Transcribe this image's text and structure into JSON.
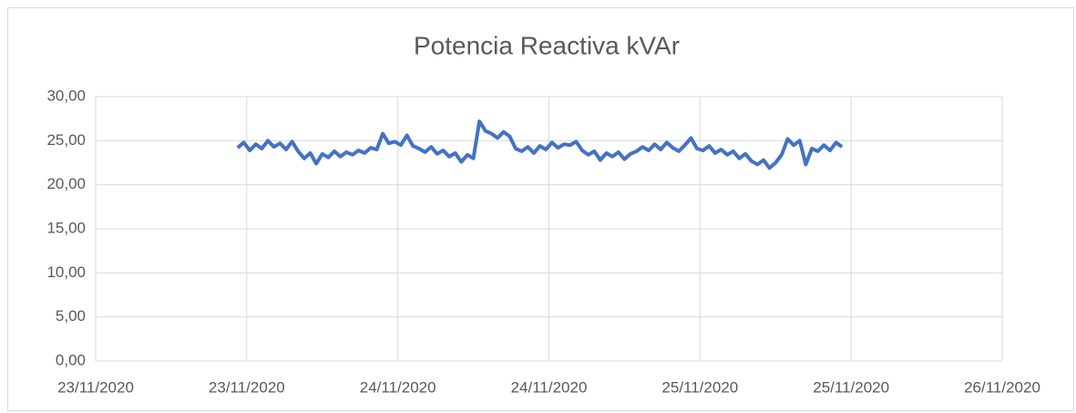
{
  "chart_data": {
    "type": "line",
    "title": "Potencia Reactiva kVAr",
    "x": [
      44158.47,
      44158.49,
      44158.51,
      44158.53,
      44158.55,
      44158.57,
      44158.59,
      44158.61,
      44158.63,
      44158.65,
      44158.67,
      44158.69,
      44158.71,
      44158.73,
      44158.75,
      44158.77,
      44158.79,
      44158.81,
      44158.83,
      44158.85,
      44158.87,
      44158.89,
      44158.91,
      44158.93,
      44158.95,
      44158.97,
      44158.99,
      44159.01,
      44159.03,
      44159.05,
      44159.07,
      44159.09,
      44159.11,
      44159.13,
      44159.15,
      44159.17,
      44159.19,
      44159.21,
      44159.23,
      44159.25,
      44159.27,
      44159.29,
      44159.31,
      44159.33,
      44159.35,
      44159.37,
      44159.39,
      44159.41,
      44159.43,
      44159.45,
      44159.47,
      44159.49,
      44159.51,
      44159.53,
      44159.55,
      44159.57,
      44159.59,
      44159.61,
      44159.63,
      44159.65,
      44159.67,
      44159.69,
      44159.71,
      44159.73,
      44159.75,
      44159.77,
      44159.79,
      44159.81,
      44159.83,
      44159.85,
      44159.87,
      44159.89,
      44159.91,
      44159.93,
      44159.95,
      44159.97,
      44159.99,
      44160.01,
      44160.03,
      44160.05,
      44160.07,
      44160.09,
      44160.11,
      44160.13,
      44160.15,
      44160.17,
      44160.19,
      44160.21,
      44160.23,
      44160.25,
      44160.27,
      44160.29,
      44160.31,
      44160.33,
      44160.35,
      44160.37,
      44160.39,
      44160.41,
      44160.43,
      44160.45,
      44160.47
    ],
    "series": [
      {
        "color": "#4472c4",
        "values": [
          24.2,
          24.8,
          23.9,
          24.6,
          24.1,
          25.0,
          24.3,
          24.7,
          24.0,
          24.9,
          23.8,
          23.0,
          23.6,
          22.4,
          23.5,
          23.1,
          23.8,
          23.2,
          23.7,
          23.4,
          23.9,
          23.6,
          24.2,
          24.0,
          25.8,
          24.7,
          24.9,
          24.5,
          25.6,
          24.4,
          24.1,
          23.7,
          24.3,
          23.5,
          23.9,
          23.2,
          23.6,
          22.6,
          23.4,
          23.0,
          27.2,
          26.1,
          25.8,
          25.3,
          26.0,
          25.5,
          24.1,
          23.8,
          24.3,
          23.6,
          24.4,
          24.0,
          24.8,
          24.2,
          24.6,
          24.5,
          24.9,
          23.9,
          23.4,
          23.8,
          22.8,
          23.6,
          23.2,
          23.7,
          22.9,
          23.5,
          23.8,
          24.3,
          23.9,
          24.6,
          24.0,
          24.8,
          24.2,
          23.8,
          24.5,
          25.3,
          24.1,
          23.9,
          24.4,
          23.6,
          24.0,
          23.4,
          23.8,
          23.0,
          23.5,
          22.7,
          22.3,
          22.8,
          21.9,
          22.5,
          23.4,
          25.2,
          24.5,
          25.0,
          22.3,
          24.1,
          23.8,
          24.5,
          23.9,
          24.8,
          24.3
        ]
      }
    ],
    "xlim": [
      44158,
      44161
    ],
    "xticks": [
      {
        "value": 44158,
        "label": "23/11/2020"
      },
      {
        "value": 44158.5,
        "label": "23/11/2020"
      },
      {
        "value": 44159,
        "label": "24/11/2020"
      },
      {
        "value": 44159.5,
        "label": "24/11/2020"
      },
      {
        "value": 44160,
        "label": "25/11/2020"
      },
      {
        "value": 44160.5,
        "label": "25/11/2020"
      },
      {
        "value": 44161,
        "label": "26/11/2020"
      }
    ],
    "ylim": [
      0,
      30
    ],
    "yticks": [
      {
        "value": 0,
        "label": "0,00"
      },
      {
        "value": 5,
        "label": "5,00"
      },
      {
        "value": 10,
        "label": "10,00"
      },
      {
        "value": 15,
        "label": "15,00"
      },
      {
        "value": 20,
        "label": "20,00"
      },
      {
        "value": 25,
        "label": "25,00"
      },
      {
        "value": 30,
        "label": "30,00"
      }
    ],
    "grid": true
  }
}
